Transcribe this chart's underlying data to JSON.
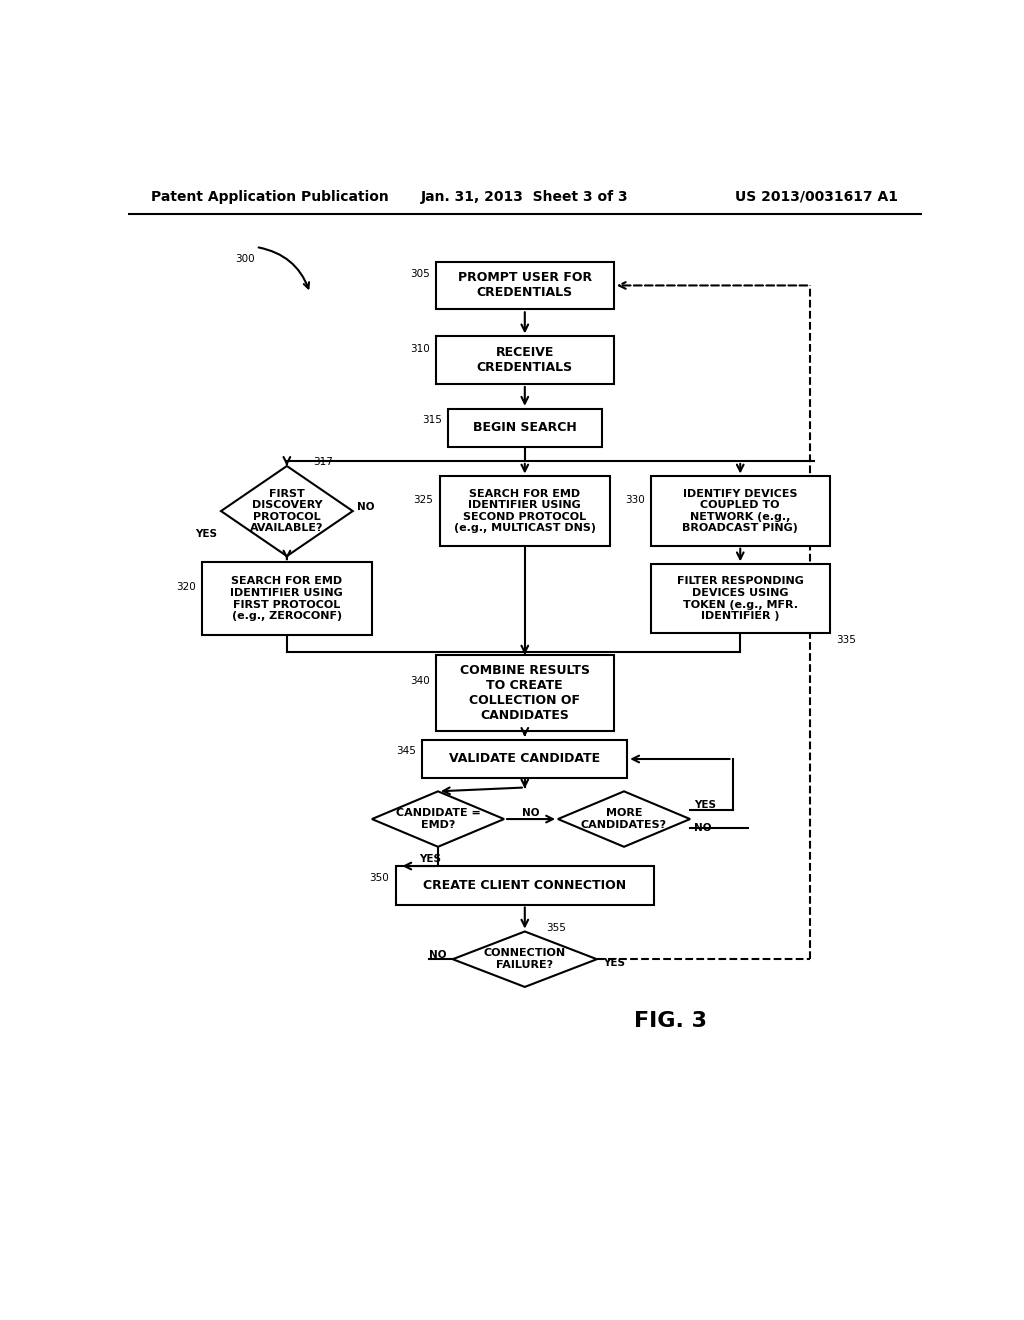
{
  "header_left": "Patent Application Publication",
  "header_mid": "Jan. 31, 2013  Sheet 3 of 3",
  "header_right": "US 2013/0031617 A1",
  "fig_label": "FIG. 3",
  "bg": "#ffffff"
}
